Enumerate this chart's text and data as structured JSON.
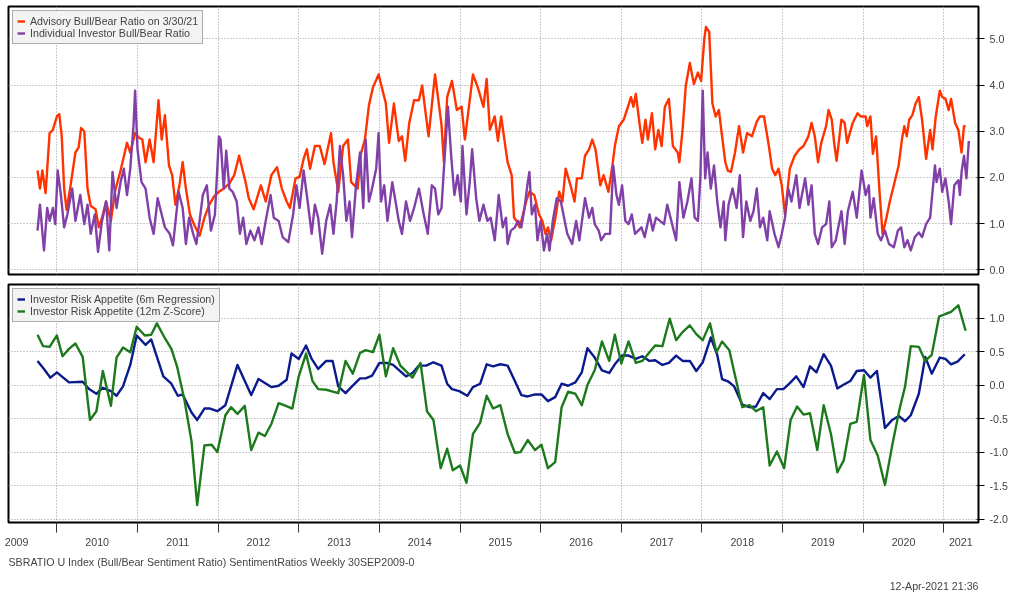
{
  "chart_data": [
    {
      "type": "line",
      "xlim": [
        2009.4,
        2021.43
      ],
      "ylim": [
        -0.1,
        5.7
      ],
      "grid": true,
      "legend": "top left",
      "tick_labels": "y",
      "xticks": [
        {
          "value": 2010,
          "label": null
        },
        {
          "value": 2011,
          "label": null
        },
        {
          "value": 2012,
          "label": null
        },
        {
          "value": 2013,
          "label": null
        },
        {
          "value": 2014,
          "label": null
        },
        {
          "value": 2015,
          "label": null
        },
        {
          "value": 2016,
          "label": null
        },
        {
          "value": 2017,
          "label": null
        },
        {
          "value": 2018,
          "label": null
        },
        {
          "value": 2019,
          "label": null
        },
        {
          "value": 2020,
          "label": null
        },
        {
          "value": 2021,
          "label": null
        }
      ],
      "yticks": [
        {
          "value": 0,
          "label": "0.0"
        },
        {
          "value": 1,
          "label": "1.0"
        },
        {
          "value": 2,
          "label": "2.0"
        },
        {
          "value": 3,
          "label": "3.0"
        },
        {
          "value": 4,
          "label": "4.0"
        },
        {
          "value": 5,
          "label": "5.0"
        }
      ],
      "series": [
        {
          "name": "Advisory Bull/Bear Ratio on 3/30/21",
          "color": "#ff3300",
          "x": [
            2009.76,
            2009.79,
            2009.82,
            2009.86,
            2009.91,
            2009.95,
            2010.0,
            2010.03,
            2010.06,
            2010.09,
            2010.12,
            2010.17,
            2010.23,
            2010.27,
            2010.3,
            2010.34,
            2010.38,
            2010.42,
            2010.48,
            2010.52,
            2010.56,
            2010.61,
            2010.67,
            2010.72,
            2010.79,
            2010.87,
            2010.91,
            2010.97,
            2011.02,
            2011.06,
            2011.1,
            2011.15,
            2011.2,
            2011.26,
            2011.3,
            2011.34,
            2011.39,
            2011.43,
            2011.47,
            2011.52,
            2011.56,
            2011.6,
            2011.65,
            2011.71,
            2011.77,
            2011.83,
            2011.89,
            2011.95,
            2012.01,
            2012.07,
            2012.14,
            2012.2,
            2012.26,
            2012.34,
            2012.38,
            2012.44,
            2012.53,
            2012.59,
            2012.66,
            2012.73,
            2012.79,
            2012.85,
            2012.89,
            2012.96,
            2013.01,
            2013.06,
            2013.1,
            2013.14,
            2013.2,
            2013.26,
            2013.32,
            2013.4,
            2013.43,
            2013.49,
            2013.55,
            2013.61,
            2013.65,
            2013.73,
            2013.77,
            2013.82,
            2013.87,
            2013.92,
            2013.99,
            2014.04,
            2014.08,
            2014.12,
            2014.18,
            2014.24,
            2014.28,
            2014.32,
            2014.37,
            2014.43,
            2014.49,
            2014.53,
            2014.61,
            2014.69,
            2014.77,
            2014.8,
            2014.84,
            2014.9,
            2014.96,
            2015.02,
            2015.06,
            2015.12,
            2015.16,
            2015.22,
            2015.29,
            2015.33,
            2015.37,
            2015.43,
            2015.47,
            2015.51,
            2015.55,
            2015.59,
            2015.64,
            2015.67,
            2015.7,
            2015.74,
            2015.77,
            2015.82,
            2015.86,
            2015.92,
            2015.98,
            2016.02,
            2016.06,
            2016.09,
            2016.13,
            2016.19,
            2016.23,
            2016.27,
            2016.31,
            2016.37,
            2016.42,
            2016.45,
            2016.51,
            2016.55,
            2016.6,
            2016.64,
            2016.68,
            2016.74,
            2016.78,
            2016.84,
            2016.89,
            2016.92,
            2016.97,
            2017.03,
            2017.07,
            2017.12,
            2017.15,
            2017.18,
            2017.23,
            2017.26,
            2017.3,
            2017.33,
            2017.38,
            2017.42,
            2017.46,
            2017.5,
            2017.54,
            2017.59,
            2017.64,
            2017.7,
            2017.72,
            2017.76,
            2017.8,
            2017.85,
            2017.9,
            2017.95,
            2017.99,
            2018.03,
            2018.05,
            2018.09,
            2018.13,
            2018.17,
            2018.21,
            2018.25,
            2018.29,
            2018.32,
            2018.36,
            2018.41,
            2018.46,
            2018.51,
            2018.56,
            2018.62,
            2018.68,
            2018.72,
            2018.77,
            2018.83,
            2018.87,
            2018.91,
            2018.95,
            2018.99,
            2019.03,
            2019.09,
            2019.15,
            2019.21,
            2019.26,
            2019.32,
            2019.36,
            2019.4,
            2019.44,
            2019.48,
            2019.54,
            2019.57,
            2019.61,
            2019.64,
            2019.67,
            2019.73,
            2019.77,
            2019.8,
            2019.87,
            2019.93,
            2019.97,
            2020.03,
            2020.05,
            2020.09,
            2020.12,
            2020.16,
            2020.2,
            2020.24,
            2020.28,
            2020.33,
            2020.38,
            2020.44,
            2020.48,
            2020.51,
            2020.54,
            2020.57,
            2020.61,
            2020.65,
            2020.69,
            2020.73,
            2020.78,
            2020.83,
            2020.86,
            2020.9,
            2020.95,
            2020.98,
            2021.02,
            2021.06,
            2021.09,
            2021.14,
            2021.18,
            2021.22,
            2021.25,
            2021.27
          ],
          "values": [
            2.15,
            1.76,
            2.15,
            1.66,
            2.96,
            3.03,
            3.32,
            3.37,
            2.9,
            1.76,
            1.3,
            1.83,
            2.54,
            2.65,
            3.07,
            3.0,
            1.76,
            1.38,
            1.31,
            0.92,
            1.13,
            1.48,
            1.06,
            1.69,
            2.15,
            2.75,
            2.54,
            2.96,
            2.86,
            2.82,
            2.33,
            2.82,
            2.33,
            3.67,
            2.82,
            3.35,
            2.26,
            2.05,
            1.41,
            1.83,
            2.33,
            1.76,
            1.2,
            0.95,
            0.74,
            1.13,
            1.41,
            1.59,
            1.69,
            1.76,
            1.87,
            2.05,
            2.47,
            1.9,
            1.55,
            1.31,
            1.83,
            1.48,
            2.05,
            2.22,
            1.76,
            1.48,
            1.34,
            1.98,
            2.01,
            2.4,
            2.61,
            2.19,
            2.68,
            2.68,
            2.29,
            2.96,
            2.33,
            1.69,
            2.68,
            2.82,
            1.9,
            1.76,
            2.51,
            2.82,
            3.56,
            3.95,
            4.23,
            3.88,
            3.6,
            2.75,
            3.6,
            2.79,
            2.89,
            2.36,
            3.18,
            3.67,
            3.67,
            3.99,
            2.89,
            4.23,
            3.14,
            2.33,
            3.74,
            4.09,
            3.46,
            3.53,
            2.82,
            3.67,
            4.23,
            3.95,
            3.53,
            4.13,
            3.03,
            3.32,
            2.79,
            3.32,
            2.82,
            2.33,
            2.05,
            1.13,
            1.06,
            0.92,
            1.13,
            1.48,
            1.69,
            1.62,
            1.2,
            1.06,
            0.78,
            0.92,
            0.64,
            1.2,
            1.69,
            1.48,
            2.19,
            1.83,
            1.48,
            1.98,
            1.98,
            2.47,
            2.61,
            2.82,
            2.61,
            1.83,
            2.05,
            1.69,
            2.26,
            2.68,
            3.11,
            3.25,
            3.46,
            3.74,
            3.53,
            3.81,
            3.11,
            2.75,
            3.25,
            2.82,
            3.39,
            2.61,
            3.03,
            2.68,
            3.53,
            3.7,
            2.68,
            2.54,
            2.33,
            3.03,
            3.99,
            4.48,
            4.02,
            4.27,
            4.09,
            5.01,
            5.26,
            5.15,
            3.6,
            3.32,
            3.46,
            2.89,
            2.33,
            2.15,
            2.12,
            2.54,
            3.11,
            2.54,
            2.96,
            2.89,
            3.21,
            3.32,
            3.32,
            2.68,
            2.19,
            2.05,
            2.19,
            1.83,
            1.2,
            2.19,
            2.47,
            2.61,
            2.68,
            2.89,
            3.18,
            2.89,
            2.33,
            2.75,
            3.11,
            3.46,
            3.25,
            2.75,
            2.36,
            3.25,
            3.18,
            2.75,
            3.18,
            3.39,
            3.32,
            3.32,
            3.11,
            3.32,
            2.51,
            2.89,
            1.76,
            0.78,
            1.06,
            1.48,
            1.83,
            2.26,
            2.82,
            3.11,
            2.89,
            3.25,
            3.35,
            3.6,
            3.74,
            3.25,
            2.4,
            3.03,
            2.61,
            3.32,
            3.88,
            3.74,
            3.7,
            3.46,
            3.7,
            3.18,
            3.03,
            2.54,
            3.11,
            3.11
          ]
        },
        {
          "name": "Individual Investor Bull/Bear Ratio",
          "color": "#8040a8",
          "x": [
            2009.76,
            2009.79,
            2009.84,
            2009.88,
            2009.91,
            2009.95,
            2009.98,
            2010.01,
            2010.05,
            2010.09,
            2010.13,
            2010.19,
            2010.23,
            2010.29,
            2010.34,
            2010.38,
            2010.42,
            2010.47,
            2010.51,
            2010.56,
            2010.61,
            2010.65,
            2010.69,
            2010.74,
            2010.79,
            2010.83,
            2010.87,
            2010.91,
            2010.95,
            2010.97,
            2011.0,
            2011.05,
            2011.1,
            2011.15,
            2011.2,
            2011.25,
            2011.3,
            2011.34,
            2011.4,
            2011.44,
            2011.51,
            2011.56,
            2011.6,
            2011.64,
            2011.69,
            2011.73,
            2011.77,
            2011.81,
            2011.86,
            2011.91,
            2011.96,
            2012.01,
            2012.03,
            2012.07,
            2012.1,
            2012.14,
            2012.18,
            2012.23,
            2012.27,
            2012.31,
            2012.35,
            2012.4,
            2012.45,
            2012.5,
            2012.54,
            2012.59,
            2012.65,
            2012.69,
            2012.75,
            2012.8,
            2012.87,
            2012.93,
            2012.97,
            2013.01,
            2013.06,
            2013.11,
            2013.16,
            2013.2,
            2013.24,
            2013.29,
            2013.34,
            2013.39,
            2013.43,
            2013.47,
            2013.51,
            2013.55,
            2013.59,
            2013.63,
            2013.66,
            2013.71,
            2013.76,
            2013.8,
            2013.83,
            2013.87,
            2013.9,
            2013.96,
            2013.99,
            2014.02,
            2014.06,
            2014.1,
            2014.16,
            2014.2,
            2014.24,
            2014.28,
            2014.33,
            2014.38,
            2014.43,
            2014.49,
            2014.55,
            2014.6,
            2014.65,
            2014.69,
            2014.73,
            2014.77,
            2014.8,
            2014.85,
            2014.89,
            2014.93,
            2014.97,
            2015.01,
            2015.03,
            2015.08,
            2015.12,
            2015.15,
            2015.2,
            2015.24,
            2015.29,
            2015.34,
            2015.38,
            2015.43,
            2015.48,
            2015.53,
            2015.57,
            2015.59,
            2015.63,
            2015.68,
            2015.72,
            2015.76,
            2015.8,
            2015.84,
            2015.86,
            2015.89,
            2015.93,
            2015.96,
            2016.0,
            2016.04,
            2016.08,
            2016.11,
            2016.15,
            2016.2,
            2016.25,
            2016.29,
            2016.33,
            2016.39,
            2016.44,
            2016.48,
            2016.55,
            2016.6,
            2016.64,
            2016.67,
            2016.72,
            2016.75,
            2016.8,
            2016.86,
            2016.9,
            2016.94,
            2016.97,
            2017.01,
            2017.05,
            2017.09,
            2017.13,
            2017.17,
            2017.21,
            2017.25,
            2017.29,
            2017.35,
            2017.39,
            2017.43,
            2017.48,
            2017.53,
            2017.57,
            2017.62,
            2017.68,
            2017.72,
            2017.77,
            2017.82,
            2017.87,
            2017.91,
            2017.95,
            2017.98,
            2018.01,
            2018.04,
            2018.07,
            2018.11,
            2018.15,
            2018.19,
            2018.23,
            2018.27,
            2018.29,
            2018.33,
            2018.38,
            2018.43,
            2018.47,
            2018.51,
            2018.55,
            2018.6,
            2018.64,
            2018.68,
            2018.72,
            2018.76,
            2018.81,
            2018.84,
            2018.9,
            2018.95,
            2018.99,
            2019.03,
            2019.07,
            2019.11,
            2019.17,
            2019.21,
            2019.24,
            2019.28,
            2019.32,
            2019.36,
            2019.4,
            2019.44,
            2019.49,
            2019.54,
            2019.58,
            2019.61,
            2019.66,
            2019.73,
            2019.77,
            2019.81,
            2019.87,
            2019.92,
            2019.98,
            2020.03,
            2020.07,
            2020.09,
            2020.13,
            2020.18,
            2020.22,
            2020.27,
            2020.32,
            2020.38,
            2020.43,
            2020.47,
            2020.51,
            2020.55,
            2020.59,
            2020.64,
            2020.69,
            2020.73,
            2020.78,
            2020.83,
            2020.89,
            2020.91,
            2020.95,
            2020.98,
            2021.02,
            2021.06,
            2021.09,
            2021.13,
            2021.18,
            2021.2,
            2021.22,
            2021.25,
            2021.28,
            2021.31
          ],
          "values": [
            0.85,
            1.41,
            0.42,
            1.34,
            1.06,
            1.34,
            0.99,
            2.15,
            1.62,
            0.92,
            1.2,
            1.76,
            1.06,
            1.62,
            0.99,
            1.41,
            0.78,
            1.2,
            0.39,
            1.06,
            1.48,
            0.42,
            2.12,
            1.34,
            1.9,
            2.19,
            1.62,
            2.19,
            3.11,
            3.88,
            2.61,
            1.9,
            1.76,
            1.13,
            0.78,
            1.55,
            1.2,
            0.92,
            0.78,
            0.53,
            1.69,
            1.34,
            0.56,
            1.13,
            0.78,
            0.56,
            1.06,
            1.62,
            1.83,
            0.85,
            1.2,
            2.89,
            2.82,
            1.76,
            2.58,
            1.76,
            1.69,
            1.48,
            0.78,
            1.13,
            0.56,
            0.85,
            0.64,
            0.92,
            0.56,
            1.06,
            1.62,
            1.13,
            1.06,
            0.71,
            0.6,
            1.2,
            1.83,
            1.34,
            2.15,
            1.48,
            0.78,
            1.41,
            1.13,
            0.35,
            1.06,
            1.41,
            0.78,
            1.48,
            2.68,
            2.05,
            1.06,
            1.48,
            0.71,
            1.83,
            2.54,
            1.34,
            2.82,
            1.48,
            1.69,
            2.19,
            2.96,
            1.48,
            1.83,
            1.06,
            1.9,
            1.48,
            1.06,
            0.78,
            1.48,
            1.06,
            1.34,
            1.76,
            1.2,
            0.78,
            1.83,
            1.76,
            1.2,
            1.34,
            2.19,
            3.53,
            2.47,
            1.62,
            2.05,
            1.48,
            2.68,
            1.2,
            1.9,
            2.61,
            1.55,
            1.06,
            1.41,
            1.06,
            1.13,
            0.64,
            1.62,
            0.92,
            1.13,
            0.56,
            0.85,
            0.92,
            1.06,
            0.92,
            1.34,
            1.9,
            2.12,
            1.2,
            1.41,
            0.64,
            1.06,
            0.42,
            0.78,
            0.42,
            1.06,
            1.55,
            1.48,
            1.13,
            0.78,
            0.56,
            1.06,
            0.64,
            1.55,
            1.13,
            1.34,
            0.99,
            0.85,
            0.64,
            0.78,
            0.78,
            2.26,
            1.62,
            1.41,
            1.83,
            1.06,
            0.99,
            1.2,
            0.78,
            0.85,
            0.92,
            0.71,
            1.2,
            0.85,
            1.13,
            1.06,
            0.99,
            1.41,
            1.06,
            0.64,
            1.9,
            1.13,
            1.48,
            1.98,
            1.13,
            1.06,
            1.98,
            3.88,
            1.98,
            2.54,
            1.76,
            2.26,
            1.48,
            0.92,
            1.48,
            0.64,
            1.41,
            1.76,
            1.34,
            2.05,
            0.71,
            1.48,
            1.06,
            1.27,
            1.76,
            0.92,
            1.13,
            0.64,
            1.27,
            0.78,
            0.49,
            0.78,
            1.13,
            1.76,
            1.48,
            2.05,
            1.34,
            1.62,
            1.98,
            1.41,
            1.83,
            0.78,
            0.56,
            0.92,
            0.99,
            1.48,
            0.49,
            0.64,
            1.27,
            0.56,
            1.27,
            1.69,
            1.13,
            2.15,
            1.62,
            1.83,
            1.13,
            1.55,
            0.78,
            0.64,
            0.85,
            0.56,
            0.49,
            0.85,
            0.92,
            0.49,
            0.64,
            0.42,
            0.71,
            0.81,
            0.71,
            0.99,
            1.13,
            2.26,
            1.9,
            2.19,
            1.69,
            1.98,
            1.48,
            0.99,
            1.83,
            1.94,
            1.62,
            2.12,
            2.47,
            1.98,
            2.79
          ]
        }
      ]
    },
    {
      "type": "line",
      "xlim": [
        2009.4,
        2021.43
      ],
      "ylim": [
        -2.05,
        1.5
      ],
      "grid": true,
      "legend": "top left",
      "xticks": [
        {
          "value": 2009.5,
          "label": "2009"
        },
        {
          "value": 2010,
          "label": null
        },
        {
          "value": 2010.5,
          "label": "2010"
        },
        {
          "value": 2011,
          "label": null
        },
        {
          "value": 2011.5,
          "label": "2011"
        },
        {
          "value": 2012,
          "label": null
        },
        {
          "value": 2012.5,
          "label": "2012"
        },
        {
          "value": 2013,
          "label": null
        },
        {
          "value": 2013.5,
          "label": "2013"
        },
        {
          "value": 2014,
          "label": null
        },
        {
          "value": 2014.5,
          "label": "2014"
        },
        {
          "value": 2015,
          "label": null
        },
        {
          "value": 2015.5,
          "label": "2015"
        },
        {
          "value": 2016,
          "label": null
        },
        {
          "value": 2016.5,
          "label": "2016"
        },
        {
          "value": 2017,
          "label": null
        },
        {
          "value": 2017.5,
          "label": "2017"
        },
        {
          "value": 2018,
          "label": null
        },
        {
          "value": 2018.5,
          "label": "2018"
        },
        {
          "value": 2019,
          "label": null
        },
        {
          "value": 2019.5,
          "label": "2019"
        },
        {
          "value": 2020,
          "label": null
        },
        {
          "value": 2020.5,
          "label": "2020"
        },
        {
          "value": 2021,
          "label": null
        },
        {
          "value": 2021.21,
          "label": "2021"
        }
      ],
      "yticks": [
        {
          "value": -2,
          "label": "-2.0"
        },
        {
          "value": -1.5,
          "label": "-1.5"
        },
        {
          "value": -1,
          "label": "-1.0"
        },
        {
          "value": -0.5,
          "label": "-0.5"
        },
        {
          "value": 0,
          "label": "0.0"
        },
        {
          "value": 0.5,
          "label": "0.5"
        },
        {
          "value": 1,
          "label": "1.0"
        }
      ],
      "annotations": [
        "SBRATIO U Index (Bull/Bear Sentiment Ratio) SentimentRatios  Weekly 30SEP2009-0",
        "12-Apr-2021 21:36"
      ],
      "series": [
        {
          "name": "Investor Risk Appetite (6m Regression)",
          "color": "#0b1a8c",
          "x": [
            2009.76,
            2009.84,
            2009.92,
            2010.0,
            2010.15,
            2010.32,
            2010.4,
            2010.49,
            2010.57,
            2010.67,
            2010.74,
            2010.82,
            2010.91,
            2010.99,
            2011.1,
            2011.17,
            2011.32,
            2011.42,
            2011.5,
            2011.56,
            2011.67,
            2011.74,
            2011.83,
            2011.9,
            2011.99,
            2012.09,
            2012.24,
            2012.41,
            2012.5,
            2012.66,
            2012.75,
            2012.85,
            2012.91,
            2013.0,
            2013.09,
            2013.16,
            2013.24,
            2013.34,
            2013.42,
            2013.49,
            2013.58,
            2013.66,
            2013.76,
            2013.83,
            2013.91,
            2014.0,
            2014.09,
            2014.17,
            2014.33,
            2014.41,
            2014.49,
            2014.58,
            2014.67,
            2014.77,
            2014.84,
            2014.9,
            2014.99,
            2015.09,
            2015.16,
            2015.25,
            2015.33,
            2015.41,
            2015.5,
            2015.59,
            2015.68,
            2015.76,
            2015.84,
            2015.93,
            2016.01,
            2016.09,
            2016.18,
            2016.26,
            2016.34,
            2016.43,
            2016.51,
            2016.58,
            2016.67,
            2016.76,
            2016.85,
            2016.92,
            2017.01,
            2017.09,
            2017.18,
            2017.26,
            2017.35,
            2017.42,
            2017.51,
            2017.59,
            2017.68,
            2017.76,
            2017.85,
            2017.93,
            2018.01,
            2018.11,
            2018.19,
            2018.25,
            2018.33,
            2018.4,
            2018.5,
            2018.59,
            2018.67,
            2018.76,
            2018.84,
            2018.93,
            2019.01,
            2019.09,
            2019.17,
            2019.26,
            2019.34,
            2019.42,
            2019.51,
            2019.6,
            2019.68,
            2019.75,
            2019.84,
            2019.92,
            2020.01,
            2020.09,
            2020.17,
            2020.27,
            2020.36,
            2020.44,
            2020.52,
            2020.59,
            2020.69,
            2020.77,
            2020.85,
            2020.95,
            2021.02,
            2021.09,
            2021.17,
            2021.26
          ],
          "values": [
            0.36,
            0.24,
            0.11,
            0.19,
            0.04,
            0.05,
            -0.06,
            -0.13,
            -0.04,
            -0.09,
            -0.16,
            -0.02,
            0.3,
            0.74,
            0.6,
            0.68,
            0.13,
            0.02,
            -0.16,
            -0.14,
            -0.41,
            -0.52,
            -0.35,
            -0.35,
            -0.39,
            -0.3,
            0.3,
            -0.15,
            0.09,
            -0.03,
            -0.01,
            0.08,
            0.47,
            0.39,
            0.59,
            0.39,
            0.24,
            0.36,
            0.36,
            -0.02,
            -0.12,
            -0.02,
            0.1,
            0.1,
            0.14,
            0.33,
            0.33,
            0.3,
            0.13,
            0.18,
            0.29,
            0.29,
            0.34,
            0.29,
            0.02,
            -0.06,
            -0.09,
            -0.16,
            -0.03,
            0.02,
            0.31,
            0.28,
            0.31,
            0.29,
            0.06,
            -0.15,
            -0.17,
            -0.14,
            -0.14,
            -0.24,
            -0.18,
            0.02,
            -0.01,
            0.04,
            0.19,
            0.55,
            0.41,
            0.22,
            0.18,
            0.31,
            0.44,
            0.44,
            0.39,
            0.43,
            0.36,
            0.37,
            0.3,
            0.33,
            0.44,
            0.36,
            0.36,
            0.21,
            0.34,
            0.71,
            0.45,
            0.09,
            0.05,
            -0.02,
            -0.29,
            -0.33,
            -0.32,
            -0.12,
            -0.21,
            -0.06,
            -0.06,
            0.03,
            0.13,
            -0.03,
            0.28,
            0.19,
            0.46,
            0.29,
            -0.05,
            0.0,
            0.06,
            0.21,
            0.22,
            0.11,
            0.21,
            -0.64,
            -0.52,
            -0.46,
            -0.54,
            -0.45,
            -0.13,
            0.42,
            0.17,
            0.41,
            0.39,
            0.31,
            0.35,
            0.46
          ]
        },
        {
          "name": "Investor Risk Appetite (12m Z-Score)",
          "color": "#1c7a1c",
          "x": [
            2009.76,
            2009.83,
            2009.91,
            2010.0,
            2010.07,
            2010.15,
            2010.23,
            2010.32,
            2010.41,
            2010.49,
            2010.57,
            2010.67,
            2010.74,
            2010.82,
            2010.91,
            2010.99,
            2011.09,
            2011.17,
            2011.24,
            2011.33,
            2011.42,
            2011.49,
            2011.58,
            2011.67,
            2011.74,
            2011.83,
            2011.92,
            2011.99,
            2012.09,
            2012.16,
            2012.24,
            2012.33,
            2012.41,
            2012.5,
            2012.58,
            2012.66,
            2012.75,
            2012.84,
            2012.92,
            2013.0,
            2013.09,
            2013.17,
            2013.24,
            2013.34,
            2013.4,
            2013.49,
            2013.58,
            2013.67,
            2013.76,
            2013.83,
            2013.92,
            2014.0,
            2014.08,
            2014.17,
            2014.26,
            2014.41,
            2014.51,
            2014.59,
            2014.67,
            2014.76,
            2014.84,
            2014.91,
            2015.0,
            2015.08,
            2015.16,
            2015.25,
            2015.33,
            2015.41,
            2015.5,
            2015.59,
            2015.68,
            2015.75,
            2015.84,
            2015.93,
            2016.01,
            2016.09,
            2016.18,
            2016.26,
            2016.34,
            2016.43,
            2016.51,
            2016.58,
            2016.67,
            2016.76,
            2016.85,
            2016.92,
            2017.0,
            2017.09,
            2017.18,
            2017.26,
            2017.35,
            2017.42,
            2017.51,
            2017.6,
            2017.68,
            2017.76,
            2017.85,
            2017.93,
            2018.01,
            2018.1,
            2018.18,
            2018.25,
            2018.34,
            2018.42,
            2018.5,
            2018.59,
            2018.67,
            2018.76,
            2018.84,
            2018.93,
            2019.02,
            2019.1,
            2019.18,
            2019.26,
            2019.34,
            2019.43,
            2019.51,
            2019.6,
            2019.68,
            2019.76,
            2019.84,
            2019.92,
            2020.01,
            2020.09,
            2020.18,
            2020.27,
            2020.36,
            2020.45,
            2020.52,
            2020.59,
            2020.69,
            2020.77,
            2020.85,
            2020.94,
            2021.02,
            2021.09,
            2021.18,
            2021.27
          ],
          "values": [
            0.75,
            0.58,
            0.57,
            0.74,
            0.43,
            0.54,
            0.62,
            0.42,
            -0.52,
            -0.39,
            0.21,
            -0.31,
            0.41,
            0.56,
            0.49,
            0.87,
            0.74,
            0.75,
            0.92,
            0.72,
            0.54,
            0.28,
            -0.21,
            -0.84,
            -1.79,
            -0.9,
            -0.89,
            -1.0,
            -0.45,
            -0.33,
            -0.43,
            -0.31,
            -0.97,
            -0.71,
            -0.76,
            -0.58,
            -0.27,
            -0.31,
            -0.35,
            0.13,
            0.47,
            0.06,
            -0.06,
            -0.07,
            -0.09,
            -0.12,
            0.36,
            0.17,
            0.48,
            0.52,
            0.49,
            0.75,
            0.13,
            0.55,
            0.29,
            0.11,
            0.33,
            -0.39,
            -0.52,
            -1.24,
            -0.95,
            -1.27,
            -1.2,
            -1.46,
            -0.73,
            -0.56,
            -0.16,
            -0.35,
            -0.3,
            -0.73,
            -1.01,
            -1.0,
            -0.82,
            -0.97,
            -0.89,
            -1.24,
            -1.15,
            -0.33,
            -0.1,
            -0.13,
            -0.3,
            0.0,
            0.22,
            0.65,
            0.36,
            0.75,
            0.32,
            0.65,
            0.33,
            0.36,
            0.49,
            0.59,
            0.58,
            0.99,
            0.67,
            0.79,
            0.89,
            0.76,
            0.67,
            0.92,
            0.49,
            0.65,
            0.52,
            0.09,
            -0.33,
            -0.3,
            -0.39,
            -0.33,
            -1.2,
            -0.99,
            -1.24,
            -0.52,
            -0.32,
            -0.44,
            -0.42,
            -0.97,
            -0.3,
            -0.73,
            -1.3,
            -1.12,
            -0.58,
            -0.55,
            0.15,
            -0.82,
            -1.05,
            -1.49,
            -0.9,
            -0.36,
            -0.02,
            0.58,
            0.57,
            0.36,
            0.45,
            1.02,
            1.06,
            1.09,
            1.19,
            0.81
          ]
        }
      ]
    }
  ]
}
